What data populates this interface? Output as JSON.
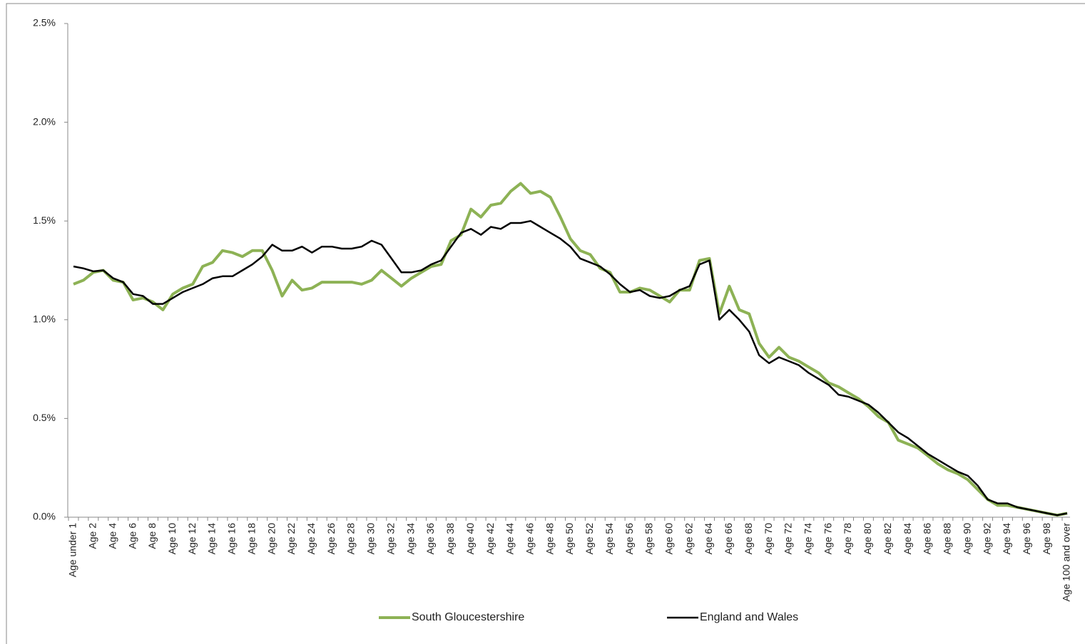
{
  "chart_data": {
    "type": "line",
    "categories": [
      "Age under 1",
      null,
      "Age 2",
      null,
      "Age 4",
      null,
      "Age 6",
      null,
      "Age 8",
      null,
      "Age 10",
      null,
      "Age 12",
      null,
      "Age 14",
      null,
      "Age 16",
      null,
      "Age 18",
      null,
      "Age 20",
      null,
      "Age 22",
      null,
      "Age 24",
      null,
      "Age 26",
      null,
      "Age 28",
      null,
      "Age 30",
      null,
      "Age 32",
      null,
      "Age 34",
      null,
      "Age 36",
      null,
      "Age 38",
      null,
      "Age 40",
      null,
      "Age 42",
      null,
      "Age 44",
      null,
      "Age 46",
      null,
      "Age 48",
      null,
      "Age 50",
      null,
      "Age 52",
      null,
      "Age 54",
      null,
      "Age 56",
      null,
      "Age 58",
      null,
      "Age 60",
      null,
      "Age 62",
      null,
      "Age 64",
      null,
      "Age 66",
      null,
      "Age 68",
      null,
      "Age 70",
      null,
      "Age 72",
      null,
      "Age 74",
      null,
      "Age 76",
      null,
      "Age 78",
      null,
      "Age 80",
      null,
      "Age 82",
      null,
      "Age 84",
      null,
      "Age 86",
      null,
      "Age 88",
      null,
      "Age 90",
      null,
      "Age 92",
      null,
      "Age 94",
      null,
      "Age 96",
      null,
      "Age 98",
      null,
      "Age 100 and over"
    ],
    "series": [
      {
        "name": "South Gloucestershire",
        "color": "#8db255",
        "values": [
          1.18,
          1.2,
          1.24,
          1.25,
          1.2,
          1.19,
          1.1,
          1.11,
          1.09,
          1.05,
          1.13,
          1.16,
          1.18,
          1.27,
          1.29,
          1.35,
          1.34,
          1.32,
          1.35,
          1.35,
          1.25,
          1.12,
          1.2,
          1.15,
          1.16,
          1.19,
          1.19,
          1.19,
          1.19,
          1.18,
          1.2,
          1.25,
          1.21,
          1.17,
          1.21,
          1.24,
          1.27,
          1.28,
          1.4,
          1.43,
          1.56,
          1.52,
          1.58,
          1.59,
          1.65,
          1.69,
          1.64,
          1.65,
          1.62,
          1.52,
          1.41,
          1.35,
          1.33,
          1.26,
          1.24,
          1.14,
          1.14,
          1.16,
          1.15,
          1.12,
          1.09,
          1.15,
          1.15,
          1.3,
          1.31,
          1.03,
          1.17,
          1.05,
          1.03,
          0.88,
          0.81,
          0.86,
          0.81,
          0.79,
          0.76,
          0.73,
          0.68,
          0.66,
          0.63,
          0.6,
          0.56,
          0.51,
          0.48,
          0.39,
          0.37,
          0.35,
          0.31,
          0.27,
          0.24,
          0.22,
          0.19,
          0.14,
          0.09,
          0.06,
          0.06,
          0.05,
          0.04,
          0.03,
          0.02,
          0.01,
          0.02
        ]
      },
      {
        "name": "England and Wales",
        "color": "#000000",
        "values": [
          1.27,
          1.26,
          1.245,
          1.25,
          1.21,
          1.19,
          1.13,
          1.12,
          1.08,
          1.08,
          1.11,
          1.14,
          1.16,
          1.18,
          1.21,
          1.22,
          1.22,
          1.25,
          1.28,
          1.32,
          1.38,
          1.35,
          1.35,
          1.37,
          1.34,
          1.37,
          1.37,
          1.36,
          1.36,
          1.37,
          1.4,
          1.38,
          1.31,
          1.24,
          1.24,
          1.25,
          1.28,
          1.3,
          1.37,
          1.44,
          1.46,
          1.43,
          1.47,
          1.46,
          1.49,
          1.49,
          1.5,
          1.47,
          1.44,
          1.41,
          1.37,
          1.31,
          1.29,
          1.27,
          1.23,
          1.18,
          1.14,
          1.15,
          1.12,
          1.11,
          1.12,
          1.15,
          1.17,
          1.28,
          1.3,
          1.0,
          1.05,
          1.0,
          0.94,
          0.82,
          0.78,
          0.81,
          0.79,
          0.77,
          0.73,
          0.7,
          0.67,
          0.62,
          0.61,
          0.59,
          0.57,
          0.53,
          0.48,
          0.43,
          0.4,
          0.36,
          0.32,
          0.29,
          0.26,
          0.23,
          0.21,
          0.16,
          0.09,
          0.07,
          0.07,
          0.05,
          0.04,
          0.03,
          0.02,
          0.01,
          0.02
        ]
      }
    ],
    "ylim": [
      0,
      2.5
    ],
    "yticks": [
      {
        "value": 0,
        "label": "0.0%"
      },
      {
        "value": 0.5,
        "label": "0.5%"
      },
      {
        "value": 1,
        "label": "1.0%"
      },
      {
        "value": 1.5,
        "label": "1.5%"
      },
      {
        "value": 2,
        "label": "2.0%"
      },
      {
        "value": 2.5,
        "label": "2.5%"
      }
    ],
    "legend": "bottom"
  }
}
